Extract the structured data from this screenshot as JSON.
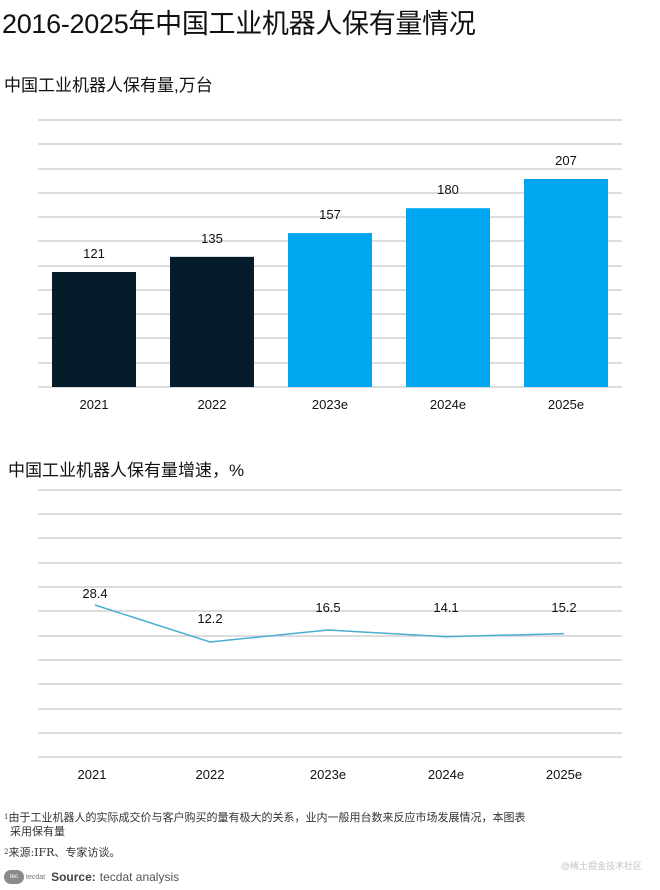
{
  "page": {
    "title": "2016-2025年中国工业机器人保有量情况"
  },
  "chart_data": [
    {
      "type": "bar",
      "title": "中国工业机器人保有量,万台",
      "xlabel": "",
      "ylabel": "",
      "categories": [
        "2021",
        "2022",
        "2023e",
        "2024e",
        "2025e"
      ],
      "values": [
        121,
        135,
        157,
        180,
        207
      ],
      "colors": [
        "#061c2a",
        "#061c2a",
        "#00a6f0",
        "#00a6f0",
        "#00a6f0"
      ],
      "grid": true,
      "legend": "none",
      "value_labels": [
        "121",
        "135",
        "157",
        "180",
        "207"
      ]
    },
    {
      "type": "line",
      "title": "中国工业机器人保有量增速，%",
      "xlabel": "",
      "ylabel": "",
      "categories": [
        "2021",
        "2022",
        "2023e",
        "2024e",
        "2025e"
      ],
      "values": [
        28.4,
        12.2,
        16.5,
        14.1,
        15.2
      ],
      "color": "#4aaed0",
      "grid": true,
      "legend": "none",
      "value_labels": [
        "28.4",
        "12.2",
        "16.5",
        "14.1",
        "15.2"
      ]
    }
  ],
  "footnotes": {
    "note1_marker": "1",
    "note1_line1": "由于工业机器人的实际成交价与客户购买的量有极大的关系，业内一般用台数来反应市场发展情况，本图表",
    "note1_line2": "采用保有量",
    "note2_marker": "2",
    "note2_text": "来源:IFR、专家访谈。"
  },
  "source": {
    "logo_text": "tecdat",
    "label": "Source:",
    "text": "tecdat analysis"
  },
  "watermark": "@稀土掘金技术社区"
}
